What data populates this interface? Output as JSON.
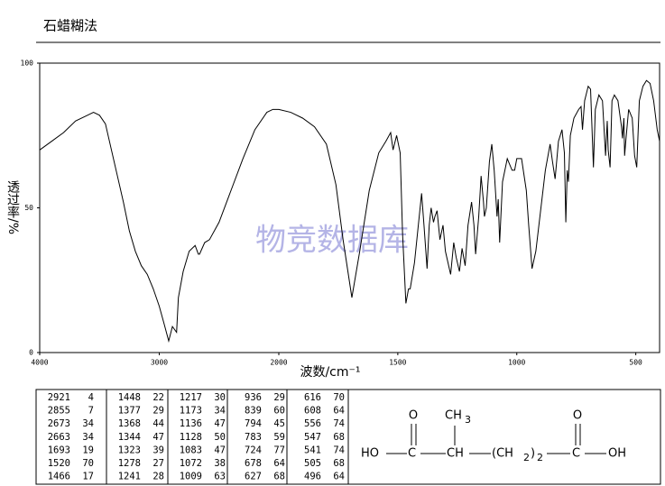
{
  "chart_data": {
    "type": "line",
    "title": "石蜡糊法",
    "xlabel": "波数/cm⁻¹",
    "ylabel": "透过率/%",
    "watermark": "物竞数据库",
    "x": [
      4000,
      3900,
      3800,
      3700,
      3600,
      3550,
      3500,
      3450,
      3400,
      3350,
      3300,
      3250,
      3200,
      3150,
      3100,
      3050,
      3000,
      2960,
      2921,
      2890,
      2855,
      2840,
      2800,
      2750,
      2700,
      2673,
      2663,
      2620,
      2580,
      2500,
      2400,
      2300,
      2200,
      2100,
      2050,
      2000,
      1950,
      1900,
      1850,
      1800,
      1760,
      1730,
      1693,
      1660,
      1620,
      1580,
      1550,
      1530,
      1520,
      1505,
      1490,
      1480,
      1466,
      1455,
      1448,
      1430,
      1410,
      1400,
      1390,
      1377,
      1368,
      1360,
      1350,
      1344,
      1335,
      1323,
      1310,
      1300,
      1278,
      1265,
      1255,
      1241,
      1230,
      1217,
      1205,
      1190,
      1180,
      1173,
      1160,
      1150,
      1140,
      1136,
      1128,
      1115,
      1105,
      1095,
      1083,
      1078,
      1072,
      1060,
      1040,
      1020,
      1009,
      1000,
      980,
      960,
      950,
      936,
      920,
      900,
      880,
      860,
      850,
      839,
      825,
      810,
      800,
      794,
      788,
      783,
      775,
      760,
      740,
      730,
      724,
      715,
      700,
      690,
      678,
      670,
      655,
      640,
      627,
      620,
      616,
      608,
      600,
      590,
      575,
      560,
      556,
      550,
      547,
      541,
      530,
      515,
      505,
      496,
      485,
      470,
      455,
      440,
      425,
      410,
      400
    ],
    "values": [
      70,
      73,
      76,
      80,
      82,
      83,
      82,
      79,
      70,
      61,
      52,
      42,
      35,
      30,
      27,
      22,
      16,
      10,
      4,
      9,
      7,
      19,
      28,
      35,
      37,
      34,
      34,
      38,
      39,
      45,
      56,
      67,
      77,
      83,
      84,
      84,
      83,
      81,
      78,
      72,
      58,
      39,
      19,
      35,
      56,
      69,
      73,
      76,
      70,
      75,
      69,
      41,
      17,
      22,
      22,
      31,
      47,
      55,
      44,
      29,
      44,
      50,
      45,
      47,
      49,
      39,
      44,
      35,
      27,
      38,
      33,
      28,
      36,
      30,
      44,
      52,
      44,
      34,
      47,
      61,
      52,
      47,
      50,
      66,
      72,
      63,
      47,
      53,
      38,
      59,
      67,
      63,
      63,
      67,
      67,
      56,
      44,
      29,
      35,
      49,
      63,
      72,
      66,
      60,
      73,
      77,
      69,
      45,
      63,
      59,
      75,
      81,
      84,
      85,
      77,
      87,
      92,
      91,
      64,
      84,
      89,
      87,
      68,
      80,
      70,
      64,
      87,
      89,
      87,
      78,
      74,
      81,
      68,
      74,
      84,
      81,
      68,
      64,
      87,
      92,
      94,
      93,
      87,
      77,
      73
    ],
    "color": "#000000",
    "xlim": [
      4000,
      400
    ],
    "x_scale_break": 2000,
    "xticks": [
      4000,
      3000,
      2000,
      1500,
      1000,
      500
    ],
    "ylim": [
      0,
      100
    ],
    "yticks": [
      0,
      50,
      100
    ],
    "watermark_color": "#b4b4e6"
  },
  "peak_table": {
    "columns": [
      [
        [
          2921,
          4
        ],
        [
          2855,
          7
        ],
        [
          2673,
          34
        ],
        [
          2663,
          34
        ],
        [
          1693,
          19
        ],
        [
          1520,
          70
        ],
        [
          1466,
          17
        ]
      ],
      [
        [
          1448,
          22
        ],
        [
          1377,
          29
        ],
        [
          1368,
          44
        ],
        [
          1344,
          47
        ],
        [
          1323,
          39
        ],
        [
          1278,
          27
        ],
        [
          1241,
          28
        ]
      ],
      [
        [
          1217,
          30
        ],
        [
          1173,
          34
        ],
        [
          1136,
          47
        ],
        [
          1128,
          50
        ],
        [
          1083,
          47
        ],
        [
          1072,
          38
        ],
        [
          1009,
          63
        ]
      ],
      [
        [
          936,
          29
        ],
        [
          839,
          60
        ],
        [
          794,
          45
        ],
        [
          783,
          59
        ],
        [
          724,
          77
        ],
        [
          678,
          64
        ],
        [
          627,
          68
        ]
      ],
      [
        [
          616,
          70
        ],
        [
          608,
          64
        ],
        [
          556,
          74
        ],
        [
          547,
          68
        ],
        [
          541,
          74
        ],
        [
          505,
          68
        ],
        [
          496,
          64
        ]
      ]
    ]
  },
  "structure": {
    "labels": [
      "O",
      "CH",
      "3",
      "HO",
      "C",
      "CH",
      "(CH",
      "2",
      ")",
      "2",
      "C",
      "OH",
      "O"
    ]
  }
}
